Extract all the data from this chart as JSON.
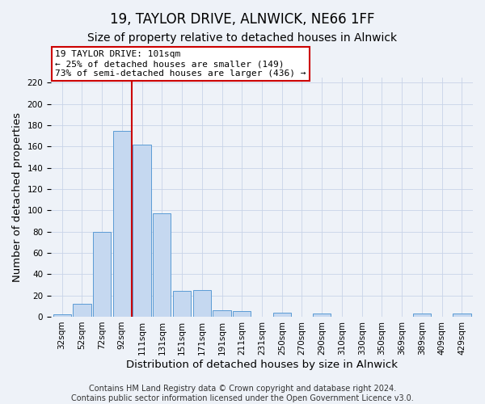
{
  "title": "19, TAYLOR DRIVE, ALNWICK, NE66 1FF",
  "subtitle": "Size of property relative to detached houses in Alnwick",
  "xlabel": "Distribution of detached houses by size in Alnwick",
  "ylabel": "Number of detached properties",
  "bar_labels": [
    "32sqm",
    "52sqm",
    "72sqm",
    "92sqm",
    "111sqm",
    "131sqm",
    "151sqm",
    "171sqm",
    "191sqm",
    "211sqm",
    "231sqm",
    "250sqm",
    "270sqm",
    "290sqm",
    "310sqm",
    "330sqm",
    "350sqm",
    "369sqm",
    "389sqm",
    "409sqm",
    "429sqm"
  ],
  "bar_heights": [
    2,
    12,
    80,
    175,
    162,
    97,
    24,
    25,
    6,
    5,
    0,
    4,
    0,
    3,
    0,
    0,
    0,
    0,
    3,
    0,
    3
  ],
  "bar_color": "#c5d8f0",
  "bar_edge_color": "#5b9bd5",
  "vline_x_index": 3,
  "vline_color": "#cc0000",
  "ylim": [
    0,
    225
  ],
  "yticks": [
    0,
    20,
    40,
    60,
    80,
    100,
    120,
    140,
    160,
    180,
    200,
    220
  ],
  "annotation_title": "19 TAYLOR DRIVE: 101sqm",
  "annotation_line1": "← 25% of detached houses are smaller (149)",
  "annotation_line2": "73% of semi-detached houses are larger (436) →",
  "annotation_box_color": "#ffffff",
  "annotation_box_edge": "#cc0000",
  "footer_line1": "Contains HM Land Registry data © Crown copyright and database right 2024.",
  "footer_line2": "Contains public sector information licensed under the Open Government Licence v3.0.",
  "bg_color": "#eef2f8",
  "grid_color": "#c8d4e8",
  "title_fontsize": 12,
  "subtitle_fontsize": 10,
  "axis_label_fontsize": 9.5,
  "tick_fontsize": 7.5,
  "annotation_fontsize": 8,
  "footer_fontsize": 7
}
